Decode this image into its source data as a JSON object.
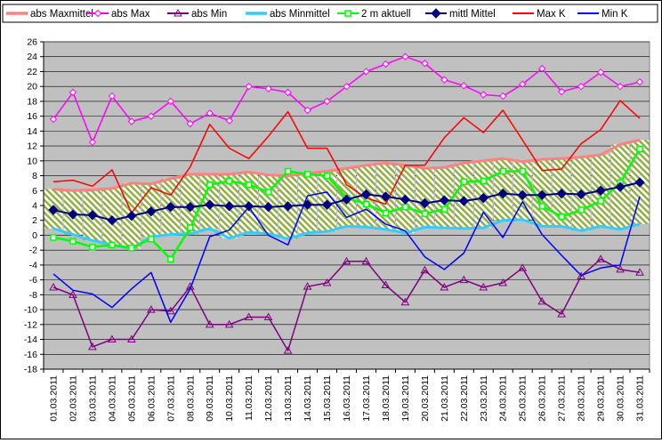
{
  "chart_data": {
    "type": "line",
    "title": "",
    "xlabel": "",
    "ylabel": "",
    "ylim": [
      -18,
      26
    ],
    "ytick_step": 2,
    "grid": true,
    "legend_position": "top",
    "plot_background": "#c0c0c0",
    "categories": [
      "01.03.2011",
      "02.03.2011",
      "03.03.2011",
      "04.03.2011",
      "05.03.2011",
      "06.03.2011",
      "07.03.2011",
      "08.03.2011",
      "09.03.2011",
      "10.03.2011",
      "11.03.2011",
      "12.03.2011",
      "13.03.2011",
      "14.03.2011",
      "15.03.2011",
      "16.03.2011",
      "17.03.2011",
      "18.03.2011",
      "19.03.2011",
      "20.03.2011",
      "21.03.2011",
      "22.03.2011",
      "23.03.2011",
      "24.03.2011",
      "25.03.2011",
      "26.03.2011",
      "27.03.2011",
      "28.03.2011",
      "29.03.2011",
      "30.03.2011",
      "31.03.2011"
    ],
    "series": [
      {
        "name": "abs Maxmittel",
        "color": "#ff8080",
        "marker": "dash",
        "values": [
          6.2,
          6.0,
          6.1,
          6.3,
          7.0,
          6.9,
          7.6,
          8.2,
          8.2,
          8.2,
          8.5,
          8.1,
          8.0,
          8.3,
          8.6,
          9.0,
          9.4,
          9.7,
          9.4,
          9.0,
          9.1,
          9.7,
          10.0,
          10.3,
          9.9,
          10.2,
          10.3,
          10.5,
          10.8,
          12.2,
          12.8
        ]
      },
      {
        "name": "abs Max",
        "color": "#ff00ff",
        "marker": "diamond-open",
        "values": [
          15.6,
          19.2,
          12.5,
          18.7,
          15.3,
          16.0,
          18.0,
          15.0,
          16.4,
          15.4,
          20.0,
          19.7,
          19.2,
          16.8,
          18.0,
          20.0,
          22.0,
          23.0,
          24.0,
          23.1,
          20.9,
          20.1,
          18.9,
          18.7,
          20.3,
          22.4,
          19.3,
          20.0,
          21.9,
          20.0,
          20.6
        ]
      },
      {
        "name": "abs Min",
        "color": "#800080",
        "marker": "triangle-open",
        "values": [
          -7.0,
          -8.0,
          -15.0,
          -14.0,
          -14.0,
          -10.0,
          -10.2,
          -6.9,
          -12.0,
          -12.0,
          -11.0,
          -11.0,
          -15.5,
          -6.9,
          -6.4,
          -3.5,
          -3.5,
          -6.7,
          -9.0,
          -4.7,
          -7.0,
          -6.0,
          -7.0,
          -6.4,
          -4.4,
          -8.9,
          -10.6,
          -5.5,
          -3.2,
          -4.6,
          -5.0
        ]
      },
      {
        "name": "abs Minmittel",
        "color": "#33ccff",
        "marker": "dash",
        "values": [
          0.9,
          0.1,
          -0.7,
          -1.3,
          -1.8,
          -0.2,
          0.1,
          0.2,
          0.9,
          -0.4,
          0.4,
          0.2,
          -0.5,
          0.3,
          0.5,
          1.2,
          1.1,
          0.8,
          0.3,
          1.1,
          1.0,
          0.9,
          1.0,
          2.0,
          2.1,
          1.2,
          1.2,
          0.6,
          1.2,
          0.8,
          1.5
        ]
      },
      {
        "name": "2 m aktuell",
        "color": "#00ff00",
        "marker": "square-open",
        "values": [
          -0.3,
          -0.8,
          -1.6,
          -1.3,
          -1.7,
          -0.5,
          -3.2,
          1.0,
          6.8,
          7.3,
          6.8,
          5.8,
          8.6,
          8.2,
          8.0,
          5.0,
          4.2,
          3.0,
          3.8,
          2.9,
          3.5,
          7.2,
          7.3,
          8.6,
          8.6,
          3.9,
          2.5,
          3.4,
          4.6,
          7.1,
          11.6
        ]
      },
      {
        "name": "mittl Mittel",
        "color": "#000080",
        "marker": "diamond-filled",
        "values": [
          3.4,
          2.8,
          2.7,
          2.0,
          2.6,
          3.2,
          3.8,
          3.8,
          4.1,
          3.9,
          3.9,
          3.8,
          3.9,
          4.1,
          4.1,
          4.8,
          5.5,
          5.2,
          4.8,
          4.3,
          4.7,
          4.6,
          5.0,
          5.6,
          5.4,
          5.4,
          5.6,
          5.5,
          6.0,
          6.5,
          7.1
        ]
      },
      {
        "name": "Max K",
        "color": "#ff0000",
        "marker": "none",
        "values": [
          7.2,
          7.4,
          6.6,
          8.8,
          3.0,
          6.4,
          5.4,
          9.2,
          14.9,
          11.7,
          10.3,
          13.3,
          16.6,
          11.7,
          11.7,
          6.8,
          5.0,
          4.2,
          9.4,
          9.4,
          13.1,
          15.8,
          13.8,
          16.8,
          12.8,
          8.7,
          8.9,
          12.3,
          14.2,
          18.1,
          15.7
        ]
      },
      {
        "name": "Min K",
        "color": "#0000ff",
        "marker": "none",
        "values": [
          -5.2,
          -7.4,
          -7.9,
          -9.7,
          -7.2,
          -5.0,
          -11.7,
          -7.2,
          -0.2,
          0.7,
          3.8,
          0.0,
          -1.3,
          5.3,
          5.8,
          2.4,
          3.5,
          1.5,
          0.6,
          -2.9,
          -4.6,
          -2.4,
          3.1,
          -0.3,
          4.5,
          0.1,
          -2.7,
          -5.4,
          -4.4,
          -4.0,
          5.2
        ]
      }
    ]
  }
}
